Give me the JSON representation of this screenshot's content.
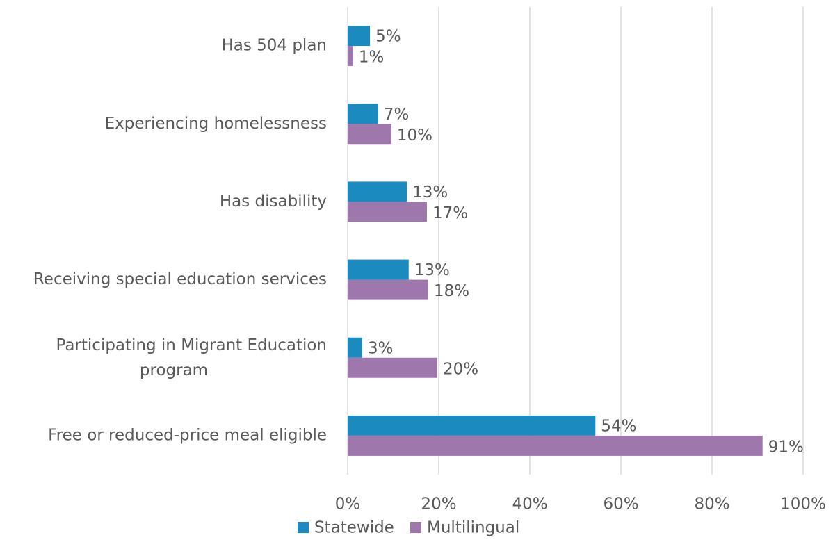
{
  "chart_data": {
    "type": "hbar",
    "categories": [
      "Has 504 plan",
      "Experiencing homelessness",
      "Has disability",
      "Receiving special education services",
      "Participating in Migrant Education program",
      "Free or reduced-price meal eligible"
    ],
    "series": [
      {
        "name": "Statewide",
        "color": "#1b8bbf",
        "values": [
          4.9,
          6.7,
          13.0,
          13.4,
          3.2,
          54.4
        ],
        "value_labels": [
          "5%",
          "7%",
          "13%",
          "13%",
          "3%",
          "54%"
        ]
      },
      {
        "name": "Multilingual",
        "color": "#9e78ad",
        "values": [
          1.2,
          9.6,
          17.4,
          17.7,
          19.7,
          91.1
        ],
        "value_labels": [
          "1%",
          "10%",
          "17%",
          "18%",
          "20%",
          "91%"
        ]
      }
    ],
    "xlim": [
      0,
      100
    ],
    "xticks": [
      {
        "value": 0,
        "label": "0%"
      },
      {
        "value": 20,
        "label": "20%"
      },
      {
        "value": 40,
        "label": "40%"
      },
      {
        "value": 60,
        "label": "60%"
      },
      {
        "value": 80,
        "label": "80%"
      },
      {
        "value": 100,
        "label": "100%"
      }
    ],
    "grid": true,
    "legend": "bottom"
  }
}
